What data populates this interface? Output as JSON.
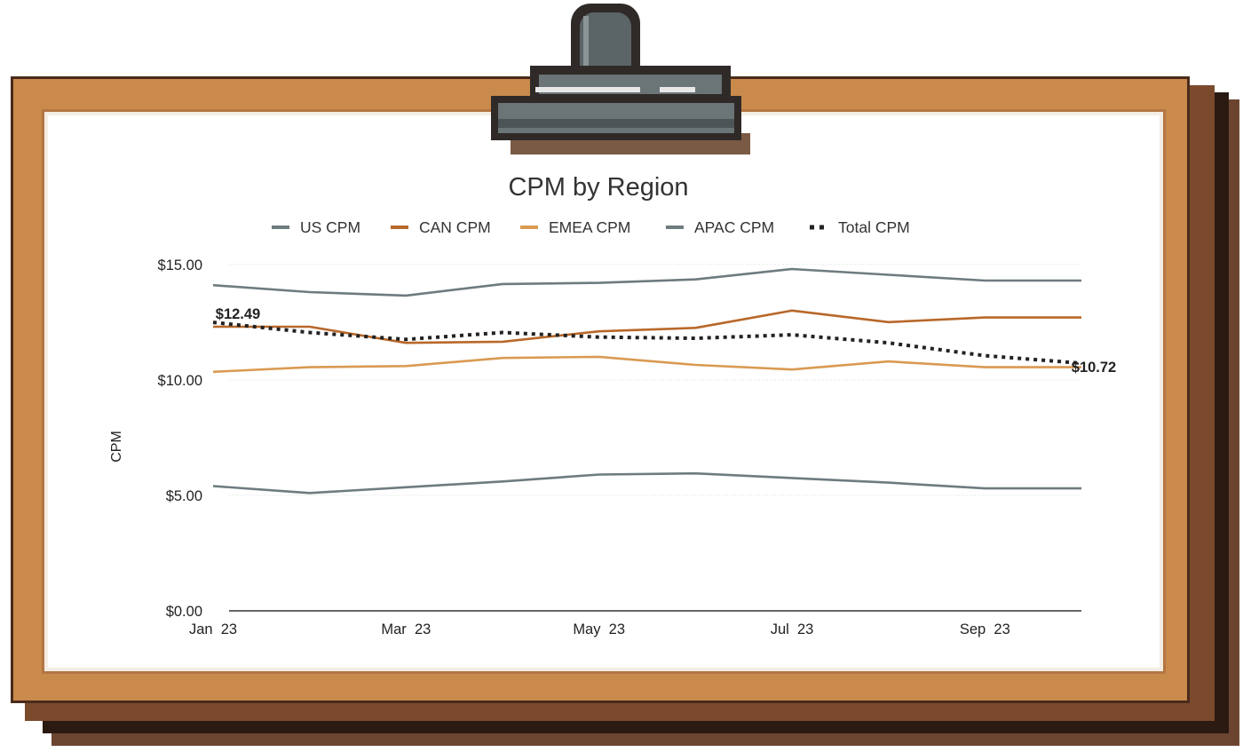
{
  "chart_data": {
    "type": "line",
    "title": "CPM by Region",
    "ylabel": "CPM",
    "xlabel": "",
    "x": [
      "Jan 23",
      "Feb 23",
      "Mar 23",
      "Apr 23",
      "May 23",
      "Jun 23",
      "Jul 23",
      "Aug 23",
      "Sep 23",
      "Oct 23"
    ],
    "x_tick_labels": [
      {
        "label": "Jan  23",
        "index": 0
      },
      {
        "label": "Mar  23",
        "index": 2
      },
      {
        "label": "May  23",
        "index": 4
      },
      {
        "label": "Jul  23",
        "index": 6
      },
      {
        "label": "Sep  23",
        "index": 8
      }
    ],
    "y_ticks": [
      {
        "label": "$15.00",
        "value": 15
      },
      {
        "label": "$10.00",
        "value": 10
      },
      {
        "label": "$5.00",
        "value": 5
      },
      {
        "label": "$0.00",
        "value": 0
      }
    ],
    "ylim": [
      0,
      15.3
    ],
    "grid": true,
    "legend_position": "top",
    "series": [
      {
        "name": "US CPM",
        "color": "#6e7b7f",
        "dashed": false,
        "values": [
          14.1,
          13.8,
          13.65,
          14.15,
          14.2,
          14.35,
          14.8,
          14.55,
          14.3,
          14.3
        ]
      },
      {
        "name": "CAN CPM",
        "color": "#b8682a",
        "dashed": false,
        "values": [
          12.3,
          12.3,
          11.6,
          11.65,
          12.1,
          12.25,
          13.0,
          12.5,
          12.7,
          12.7
        ]
      },
      {
        "name": "EMEA CPM",
        "color": "#d99a52",
        "dashed": false,
        "values": [
          10.35,
          10.55,
          10.6,
          10.95,
          11.0,
          10.65,
          10.45,
          10.8,
          10.55,
          10.55
        ]
      },
      {
        "name": "APAC CPM",
        "color": "#6e7b7f",
        "dashed": false,
        "values": [
          5.4,
          5.1,
          5.35,
          5.6,
          5.9,
          5.95,
          5.75,
          5.55,
          5.3,
          5.3
        ]
      },
      {
        "name": "Total CPM",
        "color": "#222222",
        "dashed": true,
        "values": [
          12.49,
          12.05,
          11.75,
          12.05,
          11.85,
          11.8,
          11.95,
          11.6,
          11.05,
          10.72
        ]
      }
    ],
    "annotations": [
      {
        "text": "$12.49",
        "series": "Total CPM",
        "index": 0
      },
      {
        "text": "$10.72",
        "series": "Total CPM",
        "index": 9
      }
    ]
  }
}
